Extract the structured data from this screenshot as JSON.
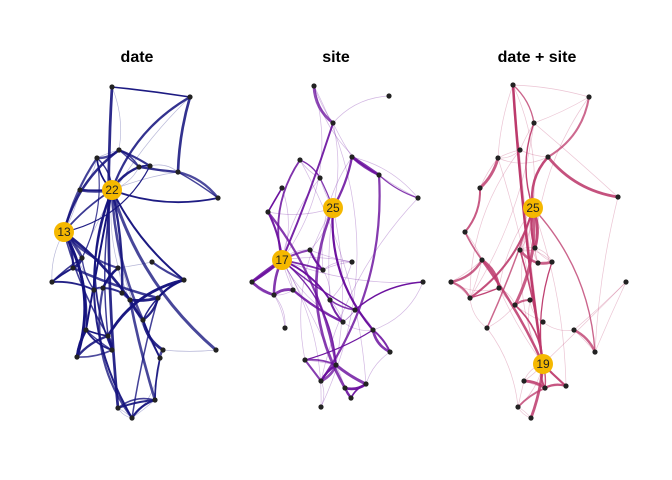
{
  "colors": {
    "background": "#ffffff",
    "node": "#222222",
    "hub": "#f5b800",
    "hub_text": "#222222"
  },
  "panels": [
    {
      "title": "date",
      "edge_color": "#15137e",
      "hub_label": "13",
      "hub2_label": "22"
    },
    {
      "title": "site",
      "edge_color": "#6a0f9e",
      "hub_label": "17",
      "hub2_label": "25"
    },
    {
      "title": "date + site",
      "edge_color": "#bd3a6c",
      "hub_label": "25",
      "hub2_label": "19"
    }
  ]
}
